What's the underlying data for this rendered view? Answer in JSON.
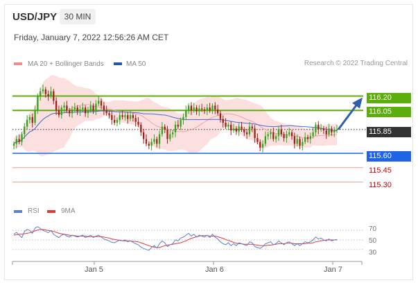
{
  "header": {
    "pair": "USD/JPY",
    "timeframe": "30 MIN",
    "datetime": "Friday, January 7, 2022 12:56:26 AM CET",
    "credit": "Research © 2022 Trading Central"
  },
  "legend": {
    "ma20_label": "MA 20 + Bollinger Bands",
    "ma50_label": "MA 50",
    "rsi_label": "RSI",
    "rsi9_label": "9MA"
  },
  "colors": {
    "green": "#5cae0a",
    "blue": "#1f64e6",
    "red": "#e53935",
    "candle_up": "#32a41a",
    "candle_down": "#9b2117",
    "bollinger_fill": "#fbdada",
    "ma50": "#3b6ed1",
    "last": "#333333"
  },
  "chart_data": {
    "type": "candlestick",
    "price_range": [
      115.1,
      116.4
    ],
    "x_ticks": [
      "Jan 5",
      "Jan 6",
      "Jan 7"
    ],
    "levels": [
      {
        "value": 116.2,
        "label": "116.20",
        "style": "green-line"
      },
      {
        "value": 116.05,
        "label": "116.05",
        "style": "green-line"
      },
      {
        "value": 115.85,
        "label": "115.85",
        "style": "last-price"
      },
      {
        "value": 115.6,
        "label": "115.60",
        "style": "blue-line"
      },
      {
        "value": 115.45,
        "label": "115.45",
        "style": "red-line"
      },
      {
        "value": 115.3,
        "label": "115.30",
        "style": "red-line"
      }
    ],
    "close": [
      115.7,
      115.75,
      115.72,
      115.8,
      115.88,
      115.95,
      115.98,
      115.92,
      116.05,
      116.2,
      116.25,
      116.27,
      116.22,
      116.2,
      116.25,
      116.15,
      116.05,
      116.0,
      116.08,
      116.1,
      116.05,
      116.02,
      116.06,
      116.08,
      116.04,
      116.06,
      116.08,
      116.02,
      116.05,
      116.1,
      116.05,
      116.12,
      116.15,
      116.1,
      116.05,
      116.02,
      116.0,
      115.95,
      115.92,
      115.95,
      116.0,
      115.98,
      116.0,
      115.96,
      116.0,
      115.97,
      115.93,
      115.9,
      115.82,
      115.75,
      115.7,
      115.68,
      115.72,
      115.75,
      115.7,
      115.8,
      115.88,
      115.85,
      115.75,
      115.8,
      115.82,
      115.9,
      115.88,
      115.95,
      115.98,
      116.05,
      116.1,
      116.05,
      116.08,
      116.04,
      116.07,
      116.06,
      116.05,
      116.08,
      116.05,
      116.1,
      116.06,
      116.02,
      115.96,
      115.92,
      115.88,
      115.9,
      115.84,
      115.86,
      115.83,
      115.88,
      115.85,
      115.82,
      115.8,
      115.88,
      115.86,
      115.76,
      115.72,
      115.66,
      115.7,
      115.78,
      115.8,
      115.82,
      115.75,
      115.78,
      115.85,
      115.8,
      115.76,
      115.8,
      115.82,
      115.78,
      115.7,
      115.75,
      115.68,
      115.72,
      115.77,
      115.75,
      115.78,
      115.82,
      115.9,
      115.85,
      115.86,
      115.84,
      115.8,
      115.86,
      115.82,
      115.84,
      115.85
    ],
    "rsi_ticks": [
      70,
      50,
      30
    ],
    "rsi_range": [
      15,
      85
    ],
    "rsi": [
      62,
      66,
      60,
      55,
      68,
      72,
      70,
      64,
      75,
      78,
      74,
      70,
      68,
      65,
      70,
      62,
      58,
      55,
      60,
      62,
      58,
      56,
      60,
      58,
      56,
      58,
      60,
      55,
      57,
      60,
      55,
      58,
      60,
      56,
      52,
      50,
      48,
      45,
      44,
      47,
      50,
      48,
      50,
      46,
      48,
      45,
      42,
      40,
      35,
      32,
      30,
      28,
      34,
      38,
      33,
      42,
      48,
      44,
      36,
      40,
      42,
      50,
      48,
      54,
      56,
      60,
      64,
      58,
      62,
      56,
      60,
      58,
      56,
      60,
      55,
      62,
      56,
      52,
      46,
      42,
      40,
      44,
      38,
      42,
      38,
      44,
      42,
      40,
      38,
      46,
      44,
      36,
      34,
      32,
      36,
      42,
      44,
      46,
      40,
      42,
      48,
      44,
      40,
      44,
      46,
      42,
      38,
      42,
      38,
      42,
      46,
      44,
      46,
      50,
      56,
      52,
      54,
      50,
      48,
      52,
      48,
      50,
      51
    ],
    "rsi9": [
      60,
      61,
      62,
      62,
      63,
      64,
      65,
      67,
      69,
      71,
      72,
      72,
      71,
      70,
      69,
      68,
      66,
      64,
      63,
      62,
      61,
      60,
      59,
      59,
      58,
      58,
      58,
      58,
      57,
      57,
      57,
      57,
      57,
      57,
      56,
      55,
      54,
      52,
      51,
      50,
      49,
      48,
      48,
      48,
      48,
      47,
      47,
      46,
      44,
      42,
      40,
      38,
      36,
      35,
      34,
      34,
      36,
      38,
      39,
      40,
      41,
      42,
      43,
      44,
      46,
      48,
      51,
      53,
      55,
      57,
      58,
      59,
      59,
      59,
      58,
      58,
      58,
      57,
      55,
      53,
      51,
      49,
      47,
      45,
      43,
      42,
      42,
      41,
      41,
      41,
      41,
      40,
      39,
      38,
      38,
      38,
      39,
      39,
      40,
      41,
      42,
      42,
      42,
      43,
      43,
      43,
      42,
      42,
      42,
      42,
      42,
      43,
      43,
      44,
      46,
      47,
      48,
      49,
      50,
      50,
      50,
      50,
      50
    ]
  }
}
